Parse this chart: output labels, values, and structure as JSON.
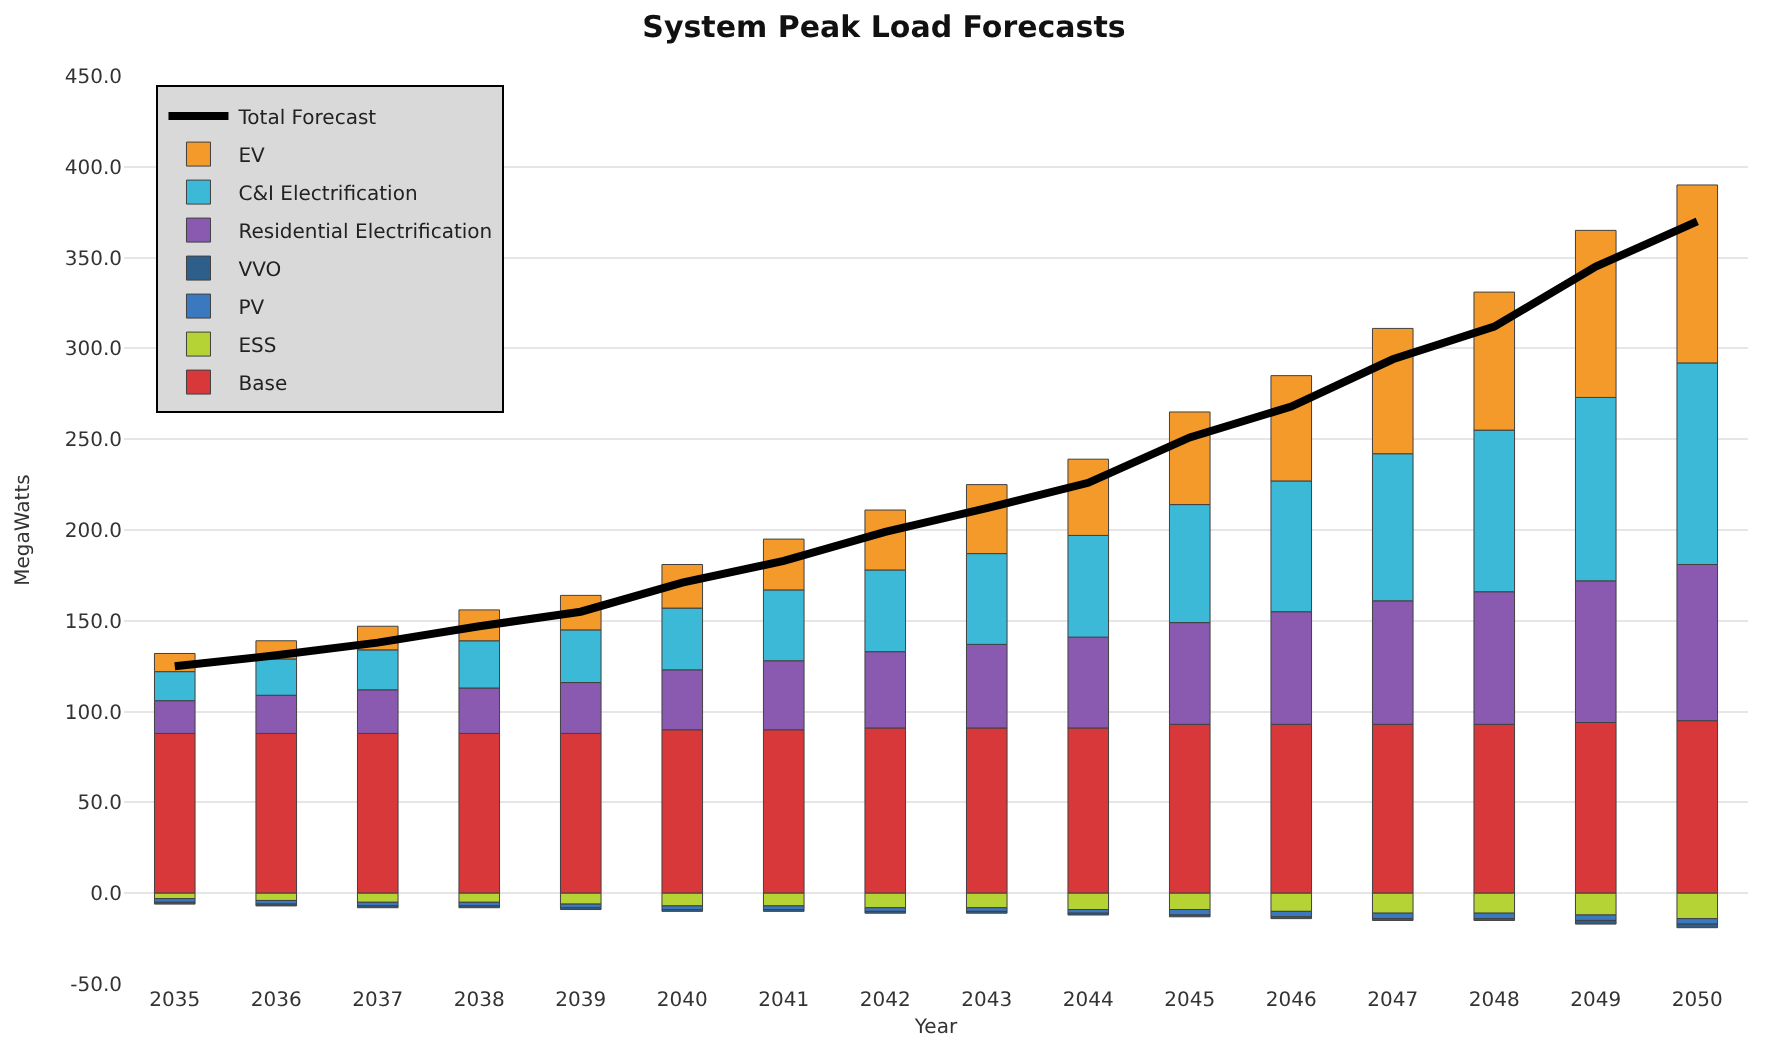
{
  "chart_data": {
    "type": "bar",
    "stacked": true,
    "title": "System Peak Load Forecasts",
    "xlabel": "Year",
    "ylabel": "MegaWatts",
    "categories": [
      "2035",
      "2036",
      "2037",
      "2038",
      "2039",
      "2040",
      "2041",
      "2042",
      "2043",
      "2044",
      "2045",
      "2046",
      "2047",
      "2048",
      "2049",
      "2050"
    ],
    "series": [
      {
        "name": "Base",
        "color": "#d9383a",
        "values": [
          88,
          88,
          88,
          88,
          88,
          90,
          90,
          91,
          91,
          91,
          93,
          93,
          93,
          93,
          94,
          95
        ]
      },
      {
        "name": "ESS",
        "color": "#b5d334",
        "values": [
          -3,
          -4,
          -5,
          -5,
          -6,
          -7,
          -7,
          -8,
          -8,
          -9,
          -9,
          -10,
          -11,
          -11,
          -12,
          -14
        ]
      },
      {
        "name": "PV",
        "color": "#3a78c0",
        "values": [
          -2,
          -2,
          -2,
          -2,
          -2,
          -2,
          -2,
          -2,
          -2,
          -2,
          -3,
          -3,
          -3,
          -3,
          -3,
          -3
        ]
      },
      {
        "name": "VVO",
        "color": "#2e5f8a",
        "values": [
          -1,
          -1,
          -1,
          -1,
          -1,
          -1,
          -1,
          -1,
          -1,
          -1,
          -1,
          -1,
          -1,
          -1,
          -2,
          -2
        ]
      },
      {
        "name": "Residential Electrification",
        "color": "#8a5ab0",
        "values": [
          18,
          21,
          24,
          25,
          28,
          33,
          38,
          42,
          46,
          50,
          56,
          62,
          68,
          73,
          78,
          86
        ]
      },
      {
        "name": "C&I Electrification",
        "color": "#3bb9d6",
        "values": [
          16,
          20,
          22,
          26,
          29,
          34,
          39,
          45,
          50,
          56,
          65,
          72,
          81,
          89,
          101,
          111
        ]
      },
      {
        "name": "EV",
        "color": "#f39a2b",
        "values": [
          10,
          10,
          13,
          17,
          19,
          24,
          28,
          33,
          38,
          42,
          51,
          58,
          69,
          76,
          92,
          98
        ]
      },
      {
        "name": "Total Forecast",
        "type": "line",
        "color": "#000000",
        "values": [
          125,
          131,
          138,
          147,
          155,
          171,
          183,
          199,
          212,
          226,
          251,
          268,
          294,
          312,
          345,
          370
        ]
      }
    ],
    "ylim": [
      -50,
      450
    ],
    "yticks": [
      {
        "value": -50,
        "label": "-50.0"
      },
      {
        "value": 0,
        "label": "0.0"
      },
      {
        "value": 50,
        "label": "50.0"
      },
      {
        "value": 100,
        "label": "100.0"
      },
      {
        "value": 150,
        "label": "150.0"
      },
      {
        "value": 200,
        "label": "200.0"
      },
      {
        "value": 250,
        "label": "250.0"
      },
      {
        "value": 300,
        "label": "300.0"
      },
      {
        "value": 350,
        "label": "350.0"
      },
      {
        "value": 400,
        "label": "400.0"
      },
      {
        "value": 450,
        "label": "450.0"
      }
    ],
    "grid": "y",
    "legend": "top left",
    "marker": "none",
    "line_style": "solid"
  }
}
